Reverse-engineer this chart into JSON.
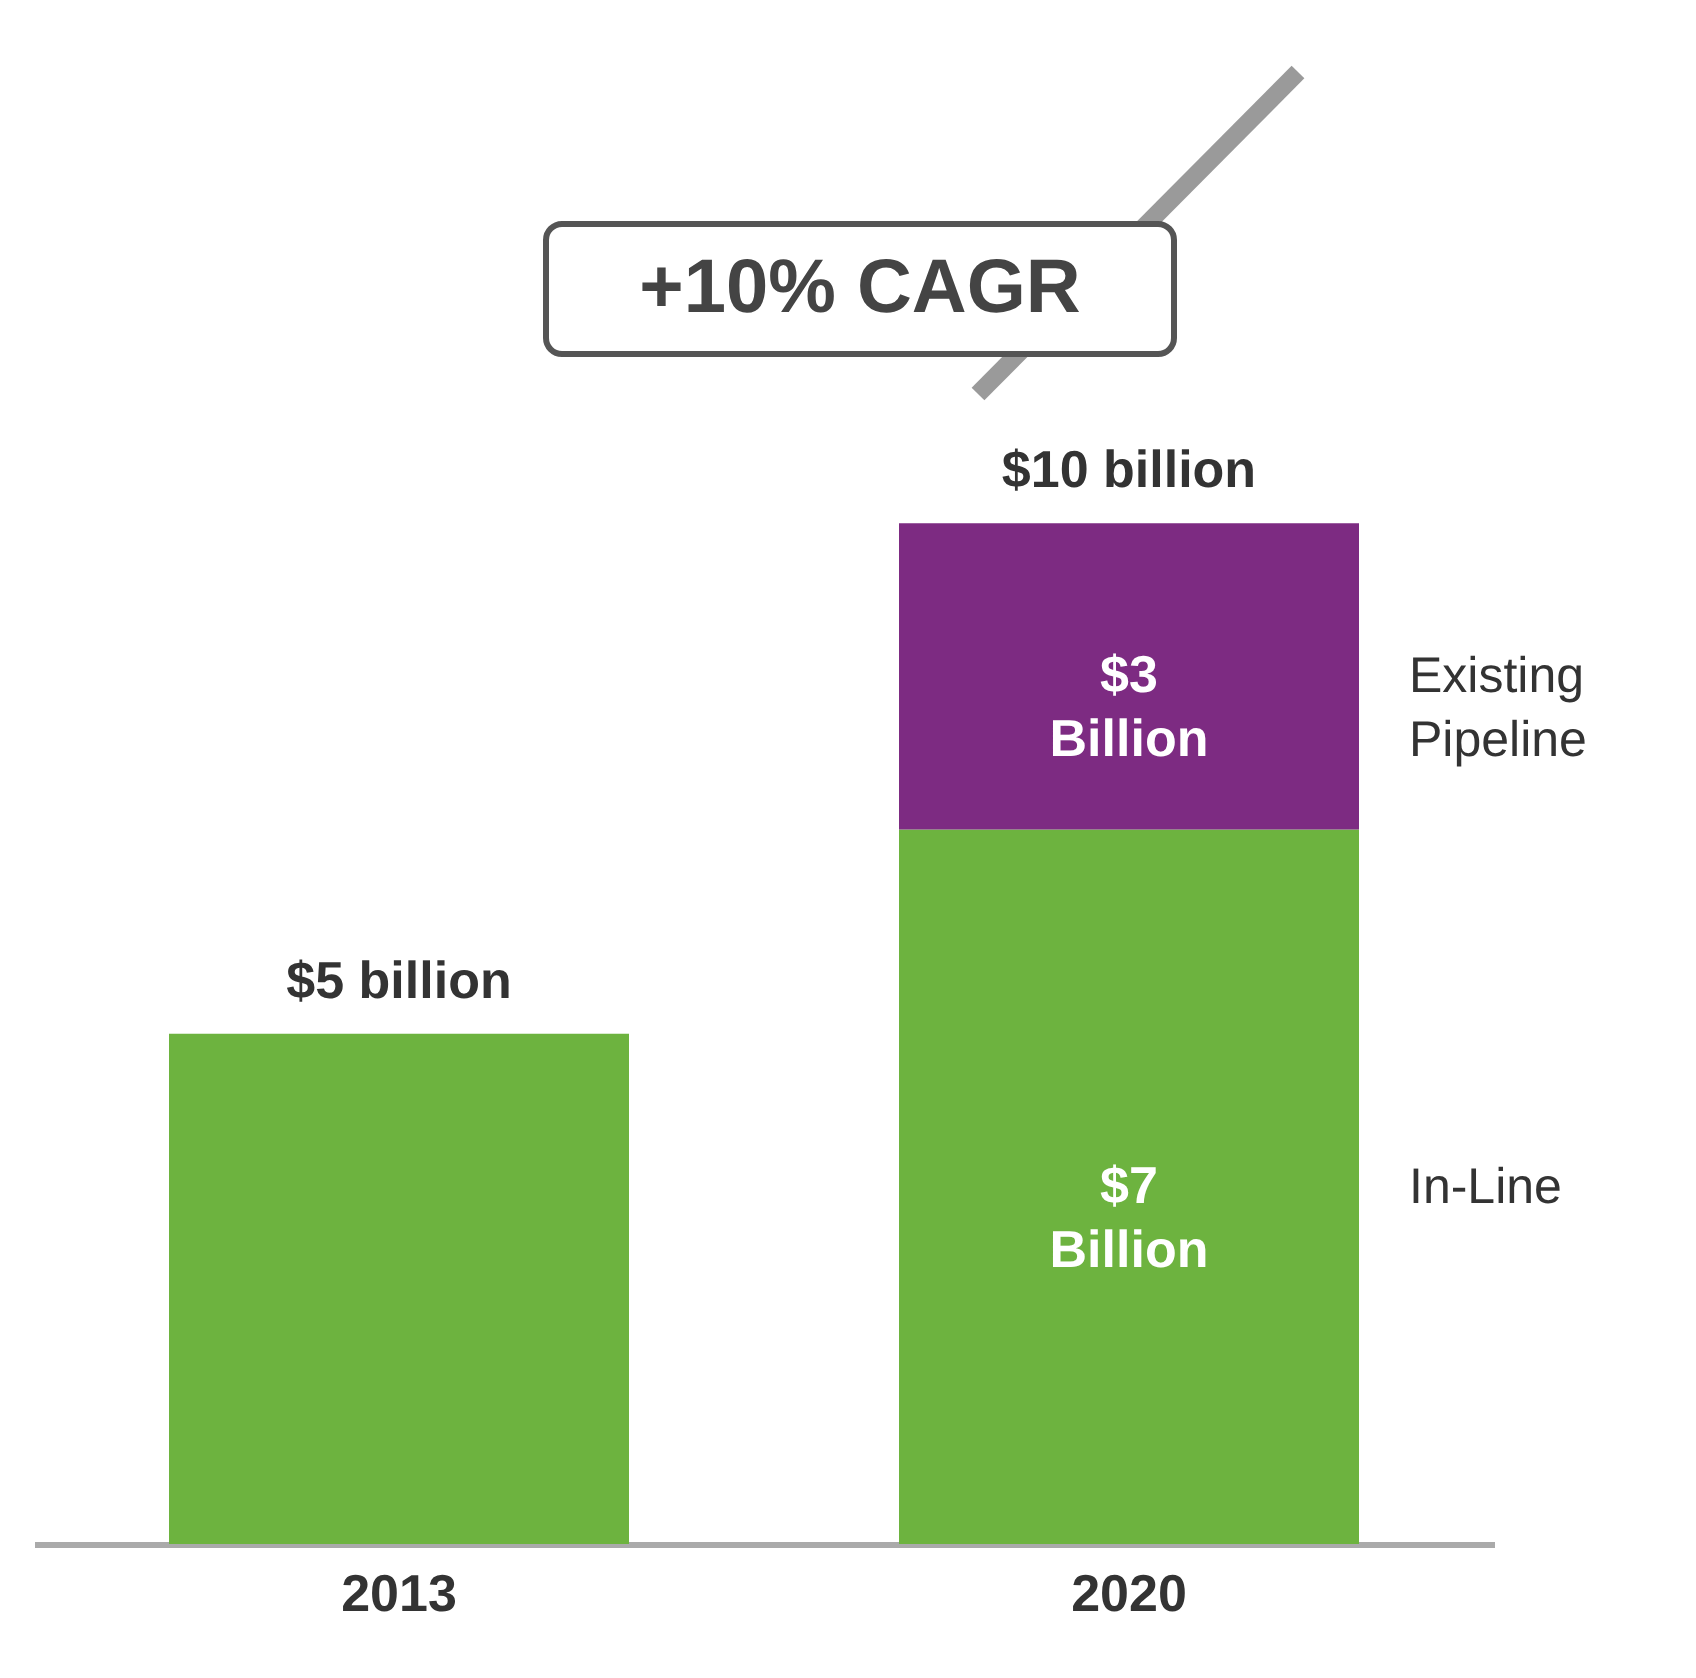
{
  "chart_data": {
    "type": "bar",
    "stacked": true,
    "categories": [
      "2013",
      "2020"
    ],
    "series": [
      {
        "name": "In-Line",
        "color": "#6db33f",
        "values": [
          5,
          7
        ],
        "value_labels": [
          null,
          "$7 Billion"
        ]
      },
      {
        "name": "Existing Pipeline",
        "color": "#7d2b82",
        "values": [
          null,
          3
        ],
        "value_labels": [
          null,
          "$3 Billion"
        ]
      }
    ],
    "totals": [
      "$5 billion",
      "$10 billion"
    ],
    "annotations": [
      "+10% CAGR"
    ],
    "legend": false
  }
}
